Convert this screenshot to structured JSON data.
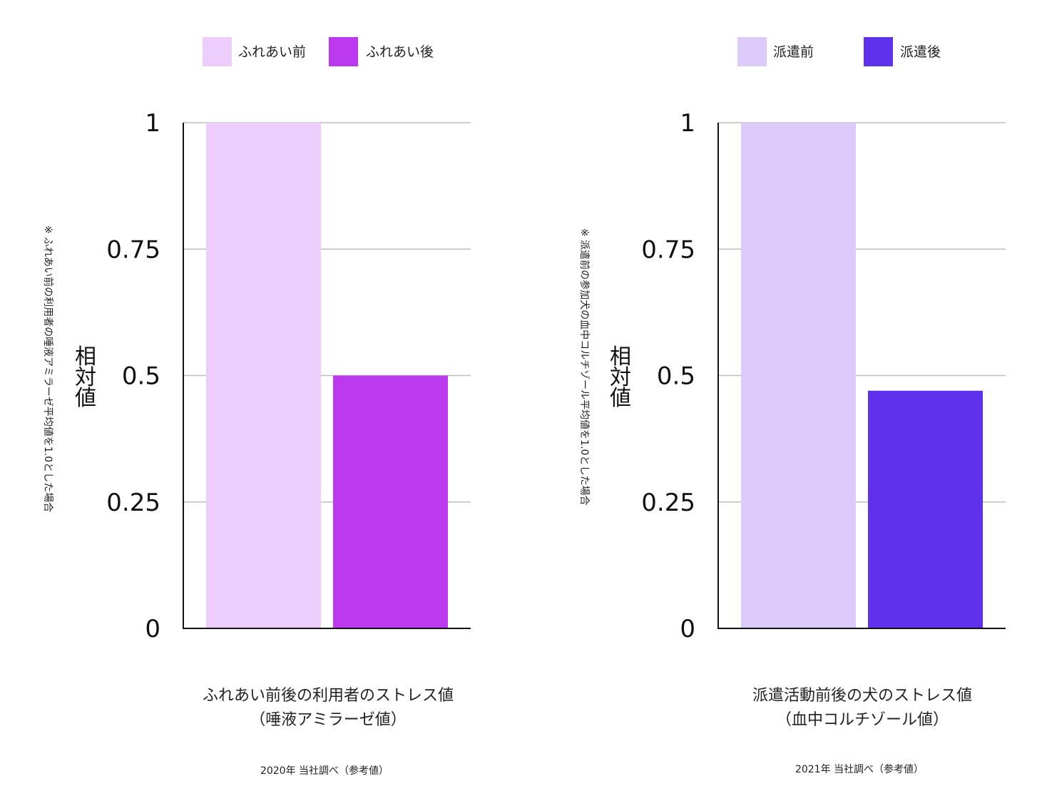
{
  "chart_data": [
    {
      "type": "bar",
      "categories": [
        "ふれあい前",
        "ふれあい後"
      ],
      "values": [
        1.0,
        0.5
      ],
      "colors": [
        "#edcdfb",
        "#bb3af0"
      ],
      "legend": [
        {
          "label": "ふれあい前",
          "color": "#edcdfb"
        },
        {
          "label": "ふれあい後",
          "color": "#bb3af0"
        }
      ],
      "legend_position": "top",
      "ylabel": "相対値",
      "note": "※ ふれあい前の利用者の唾液アミラーゼ平均値を1.0とした場合",
      "xlabel_lines": [
        "ふれあい前後の利用者のストレス値",
        "（唾液アミラーゼ値）"
      ],
      "source": "2020年 当社調べ（参考値）",
      "ylim": [
        0,
        1
      ],
      "yticks": [
        0,
        0.25,
        0.5,
        0.75,
        1
      ],
      "ytick_labels": [
        "0",
        "0.25",
        "0.5",
        "0.75",
        "1"
      ],
      "grid": true
    },
    {
      "type": "bar",
      "categories": [
        "派遣前",
        "派遣後"
      ],
      "values": [
        1.0,
        0.47
      ],
      "colors": [
        "#dacbfb",
        "#5f31ea"
      ],
      "legend": [
        {
          "label": "派遣前",
          "color": "#dacbfb"
        },
        {
          "label": "派遣後",
          "color": "#5f31ea"
        }
      ],
      "legend_position": "top",
      "ylabel": "相対値",
      "note": "※ 派遣前の参加犬の血中コルチゾール平均値を1.0とした場合",
      "xlabel_lines": [
        "派遣活動前後の犬のストレス値",
        "（血中コルチゾール値）"
      ],
      "source": "2021年 当社調べ（参考値）",
      "ylim": [
        0,
        1
      ],
      "yticks": [
        0,
        0.25,
        0.5,
        0.75,
        1
      ],
      "ytick_labels": [
        "0",
        "0.25",
        "0.5",
        "0.75",
        "1"
      ],
      "grid": true
    }
  ]
}
